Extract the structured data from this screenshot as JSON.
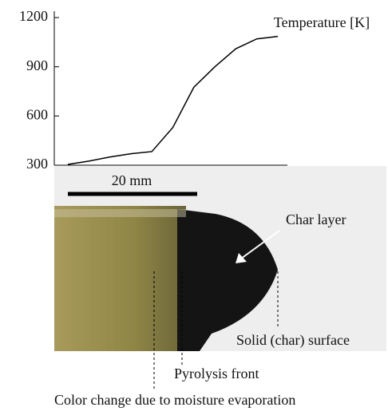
{
  "chart_data": {
    "type": "line",
    "ylim": [
      300,
      1200
    ],
    "yticks": [
      300,
      600,
      900,
      1200
    ],
    "series": [
      {
        "name": "Temperature [K]",
        "color": "#000000",
        "values": [
          305,
          325,
          350,
          370,
          383,
          530,
          775,
          900,
          1010,
          1070,
          1085
        ]
      }
    ],
    "annotations": {
      "scale": "20 mm",
      "char_layer": "Char layer",
      "surface": "Solid (char) surface",
      "pyrolysis": "Pyrolysis front",
      "color_change": "Color change due to moisture evaporation"
    }
  }
}
